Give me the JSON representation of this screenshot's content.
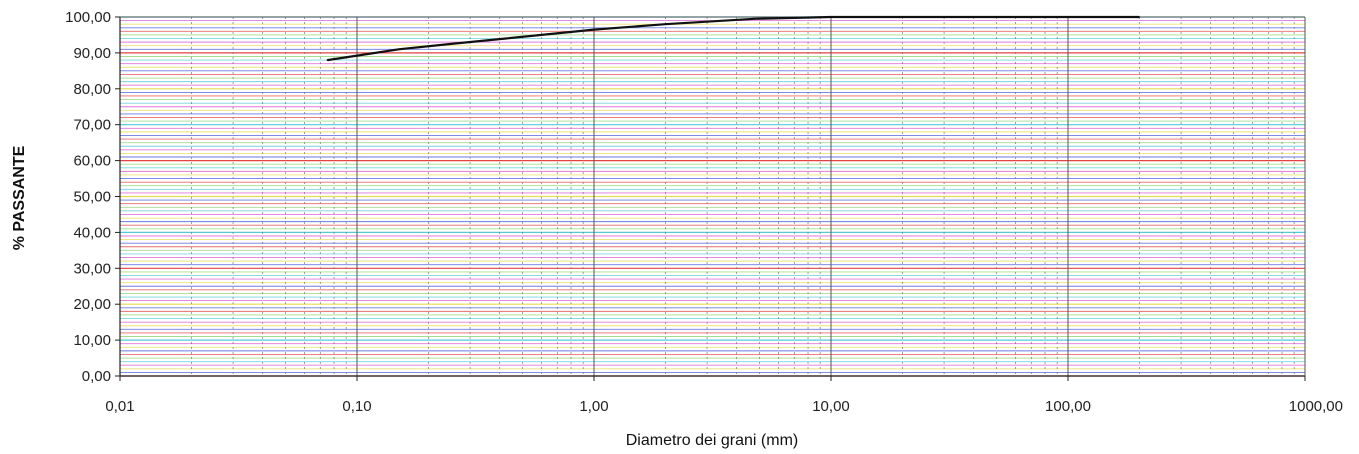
{
  "chart_data": {
    "type": "line",
    "title": "",
    "xlabel": "Diametro dei grani (mm)",
    "ylabel": "% PASSANTE",
    "x_scale": "log",
    "xlim": [
      0.01,
      1000
    ],
    "ylim": [
      0,
      100
    ],
    "grid": true,
    "x_ticks": [
      {
        "value": 0.01,
        "label": "0,01"
      },
      {
        "value": 0.1,
        "label": "0,10"
      },
      {
        "value": 1,
        "label": "1,00"
      },
      {
        "value": 10,
        "label": "10,00"
      },
      {
        "value": 100,
        "label": "100,00"
      },
      {
        "value": 1000,
        "label": "1000,00"
      }
    ],
    "y_ticks": [
      {
        "value": 0,
        "label": "0,00"
      },
      {
        "value": 10,
        "label": "10,00"
      },
      {
        "value": 20,
        "label": "20,00"
      },
      {
        "value": 30,
        "label": "30,00"
      },
      {
        "value": 40,
        "label": "40,00"
      },
      {
        "value": 50,
        "label": "50,00"
      },
      {
        "value": 60,
        "label": "60,00"
      },
      {
        "value": 70,
        "label": "70,00"
      },
      {
        "value": 80,
        "label": "80,00"
      },
      {
        "value": 90,
        "label": "90,00"
      },
      {
        "value": 100,
        "label": "100,00"
      }
    ],
    "series": [
      {
        "color": "#111111",
        "x": [
          0.075,
          0.15,
          0.25,
          0.425,
          1.0,
          2.0,
          4.75,
          10.0,
          20.0,
          50.0,
          200.0
        ],
        "y": [
          88.0,
          91.0,
          92.5,
          94.0,
          96.5,
          98.0,
          99.5,
          100.0,
          100.0,
          100.0,
          100.0
        ]
      }
    ]
  },
  "colors": {
    "grid_lines": [
      "#e03a3a",
      "#3a4fd6",
      "#e8d84a",
      "#d94ad0",
      "#49c7d8",
      "#8ad06a"
    ],
    "curve": "#111111",
    "background": "#ffffff"
  }
}
